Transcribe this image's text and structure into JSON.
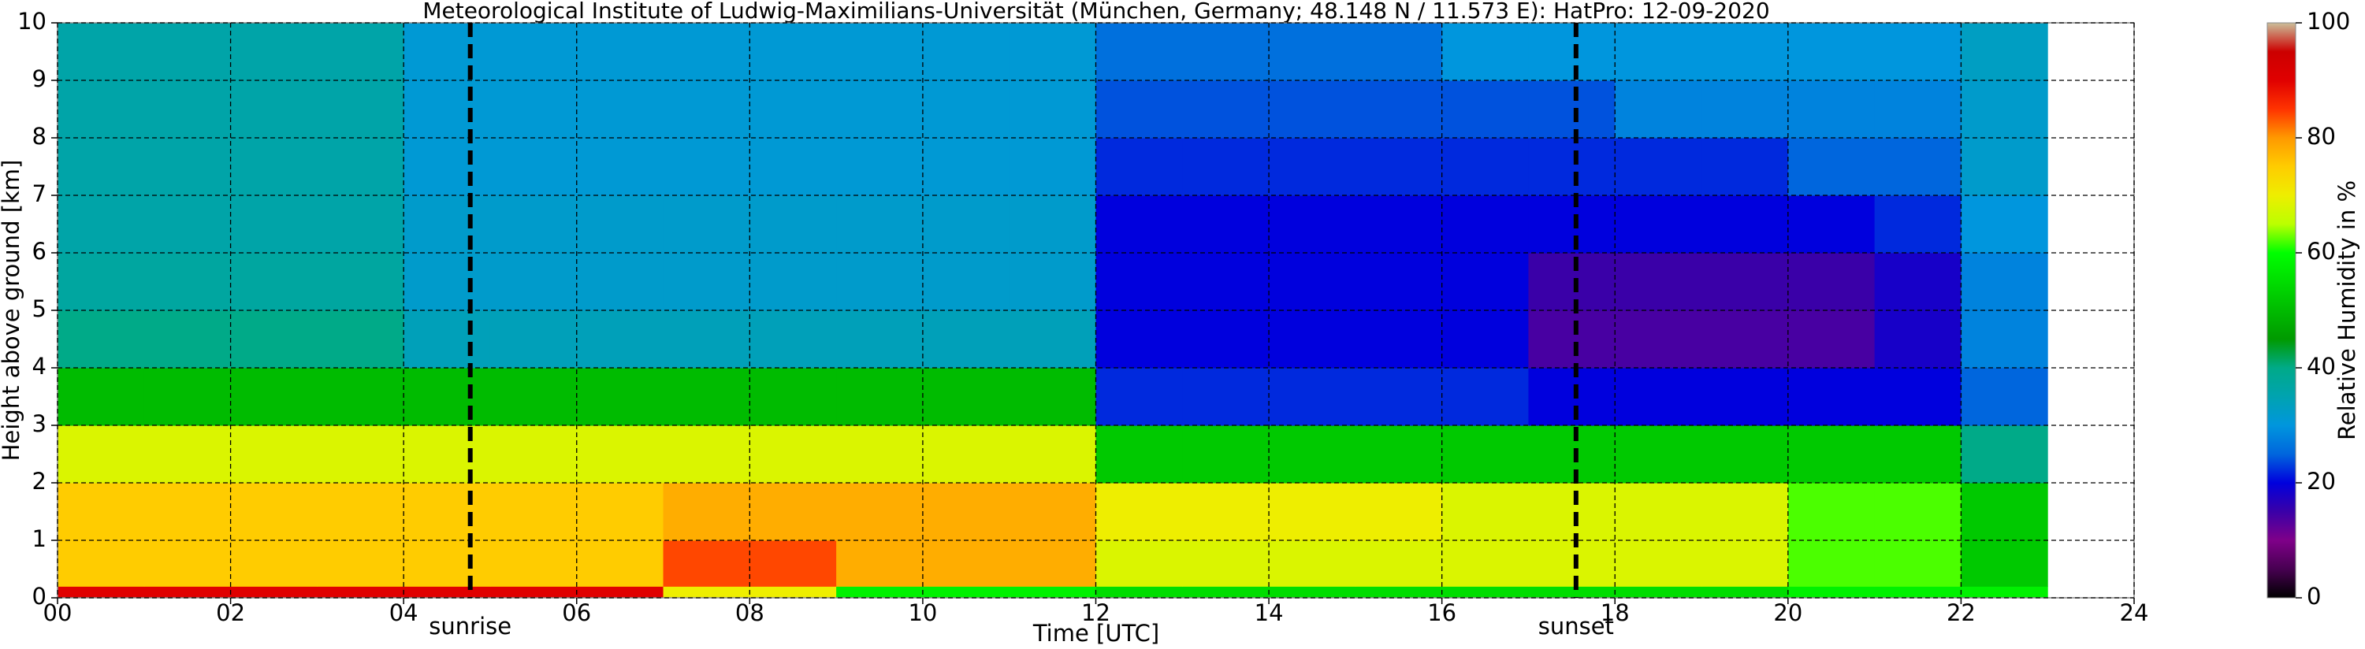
{
  "chart_data": {
    "type": "heatmap",
    "title": "Meteorological Institute of Ludwig-Maximilians-Universität (München, Germany; 48.148 N / 11.573 E):    HatPro: 12-09-2020",
    "xlabel": "Time [UTC]",
    "ylabel": "Height above ground [km]",
    "colorbar_label": "Relative Humidity in %",
    "xlim": [
      0,
      24
    ],
    "xticks": [
      {
        "value": 0,
        "label": "00"
      },
      {
        "value": 2,
        "label": "02"
      },
      {
        "value": 4,
        "label": "04"
      },
      {
        "value": 6,
        "label": "06"
      },
      {
        "value": 8,
        "label": "08"
      },
      10,
      12,
      14,
      16,
      18,
      20,
      22,
      24
    ],
    "ylim": [
      0,
      10
    ],
    "yticks": [
      0,
      1,
      2,
      3,
      4,
      5,
      6,
      7,
      8,
      9,
      10
    ],
    "zlim": [
      0,
      100
    ],
    "zticks": [
      0,
      20,
      40,
      60,
      80,
      100
    ],
    "grid": true,
    "colormap": [
      "#000000",
      "#470051",
      "#7f0089",
      "#3a00a8",
      "#0000dd",
      "#0066dd",
      "#0096dd",
      "#00a3b0",
      "#00aa88",
      "#009a00",
      "#00bb00",
      "#00dd00",
      "#00ff00",
      "#bbff00",
      "#eeee00",
      "#ffcc00",
      "#ff9900",
      "#ff3300",
      "#e00000",
      "#cc0000",
      "#cbbf9a"
    ],
    "x_edges": [
      0,
      1,
      2,
      3,
      4,
      5,
      6,
      7,
      8,
      9,
      10,
      11,
      12,
      13,
      14,
      15,
      16,
      17,
      18,
      19,
      20,
      21,
      22,
      23
    ],
    "y_edges": [
      0,
      0.2,
      1,
      2,
      3,
      4,
      5,
      6,
      7,
      8,
      9,
      10
    ],
    "z": [
      [
        90,
        90,
        90,
        90,
        90,
        90,
        90,
        70,
        70,
        58,
        58,
        58,
        55,
        55,
        55,
        55,
        55,
        55,
        55,
        55,
        58,
        58,
        58
      ],
      [
        75,
        75,
        75,
        75,
        75,
        75,
        75,
        84,
        84,
        78,
        78,
        78,
        68,
        68,
        68,
        68,
        68,
        68,
        68,
        68,
        62,
        62,
        52
      ],
      [
        75,
        75,
        75,
        75,
        75,
        75,
        75,
        78,
        78,
        78,
        78,
        78,
        70,
        70,
        70,
        70,
        68,
        68,
        68,
        68,
        62,
        62,
        52
      ],
      [
        68,
        68,
        68,
        68,
        68,
        68,
        68,
        68,
        68,
        68,
        68,
        68,
        52,
        52,
        52,
        52,
        52,
        52,
        52,
        52,
        52,
        52,
        40
      ],
      [
        50,
        50,
        50,
        50,
        50,
        50,
        50,
        50,
        50,
        50,
        50,
        50,
        22,
        22,
        22,
        22,
        22,
        20,
        20,
        20,
        20,
        20,
        25
      ],
      [
        40,
        40,
        40,
        40,
        34,
        34,
        34,
        34,
        34,
        34,
        34,
        34,
        20,
        20,
        20,
        20,
        20,
        14,
        14,
        14,
        14,
        18,
        28
      ],
      [
        37,
        37,
        37,
        37,
        32,
        32,
        32,
        32,
        32,
        32,
        32,
        32,
        20,
        20,
        20,
        20,
        20,
        15,
        15,
        15,
        15,
        18,
        28
      ],
      [
        36,
        36,
        36,
        36,
        32,
        32,
        32,
        32,
        32,
        32,
        32,
        32,
        20,
        20,
        20,
        20,
        20,
        20,
        20,
        20,
        20,
        22,
        30
      ],
      [
        36,
        36,
        36,
        36,
        31,
        31,
        31,
        31,
        31,
        31,
        31,
        31,
        22,
        22,
        22,
        22,
        22,
        22,
        22,
        22,
        25,
        25,
        32
      ],
      [
        36,
        36,
        36,
        36,
        31,
        31,
        31,
        31,
        31,
        31,
        31,
        31,
        24,
        24,
        24,
        24,
        24,
        24,
        28,
        28,
        28,
        28,
        32
      ],
      [
        36,
        36,
        36,
        36,
        31,
        31,
        31,
        31,
        31,
        31,
        31,
        31,
        26,
        26,
        26,
        26,
        30,
        30,
        30,
        30,
        30,
        30,
        33
      ]
    ],
    "events": [
      {
        "label": "sunrise",
        "x": 4.77
      },
      {
        "label": "sunset",
        "x": 17.55
      }
    ]
  }
}
